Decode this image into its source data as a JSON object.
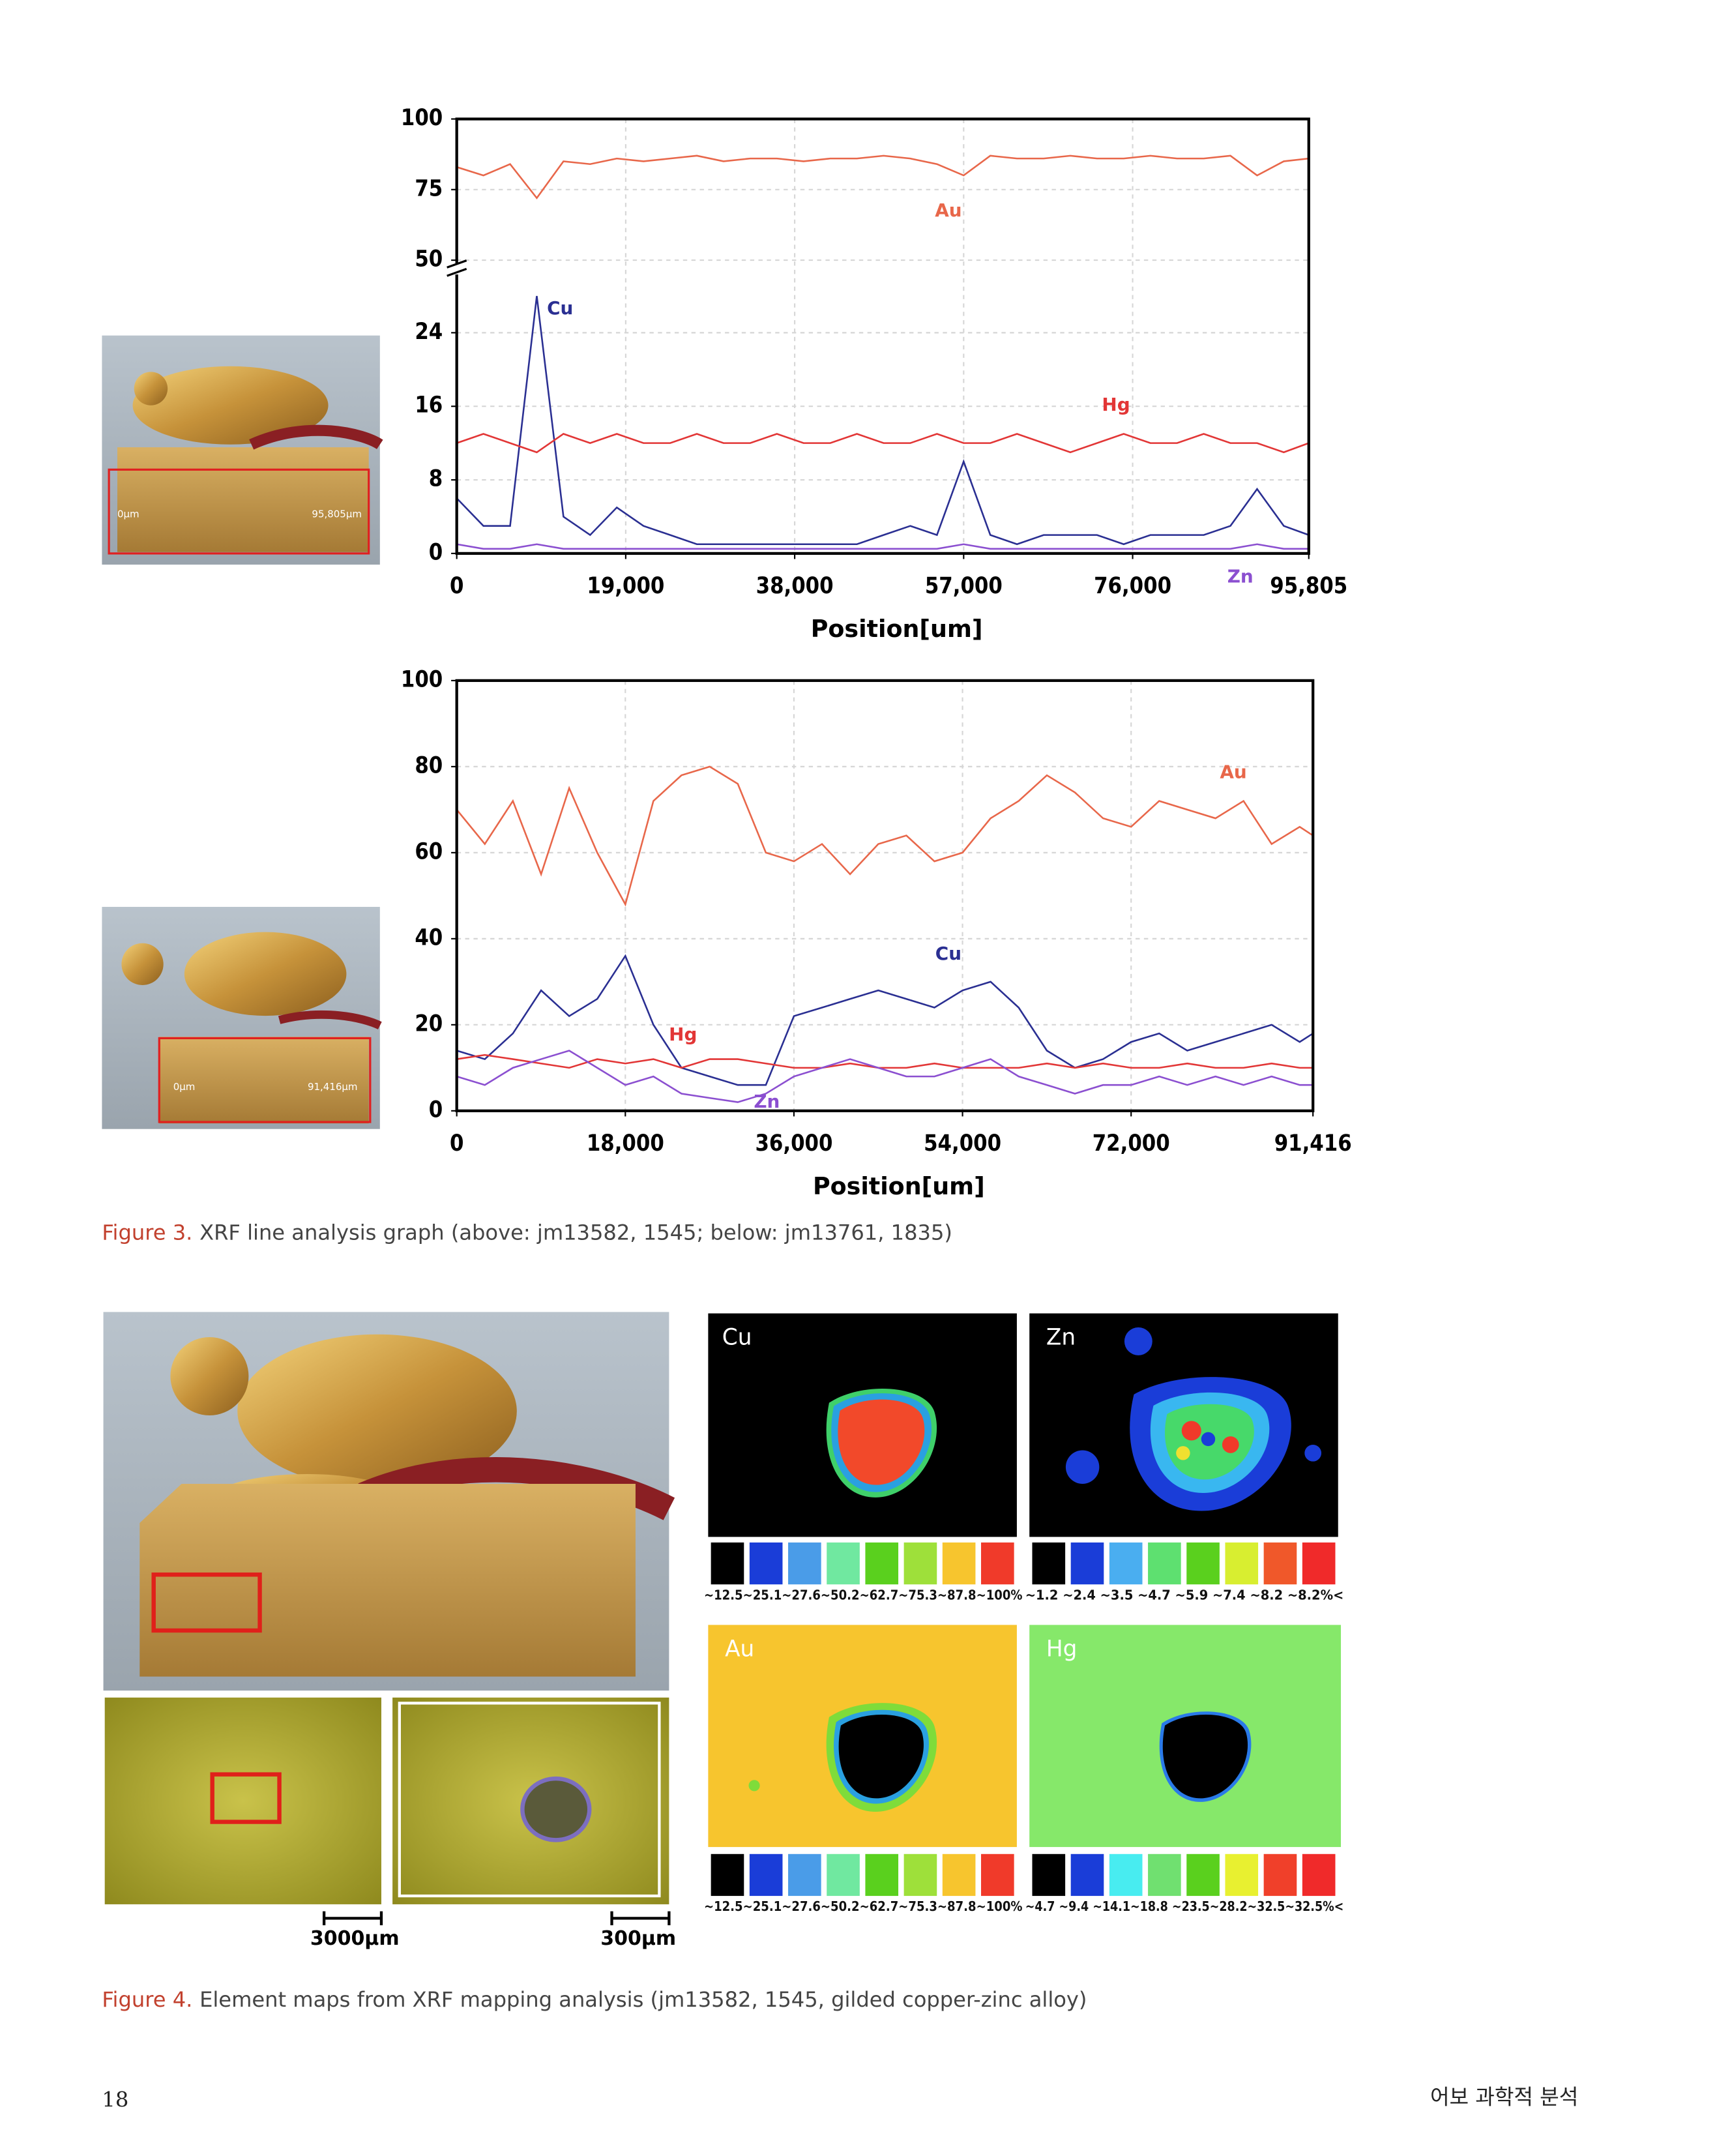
{
  "chart_data": [
    {
      "type": "line",
      "x_label": "Position[um]",
      "x": [
        0,
        3000,
        6000,
        9000,
        12000,
        15000,
        18000,
        21000,
        24000,
        27000,
        30000,
        33000,
        36000,
        39000,
        42000,
        45000,
        48000,
        51000,
        54000,
        57000,
        60000,
        63000,
        66000,
        69000,
        72000,
        75000,
        78000,
        81000,
        84000,
        87000,
        90000,
        93000,
        95805
      ],
      "xlim": [
        0,
        95805
      ],
      "xticks": [
        0,
        {
          "value": 19000,
          "label": "19,000"
        },
        {
          "value": 38000,
          "label": "38,000"
        },
        {
          "value": 57000,
          "label": "57,000"
        },
        {
          "value": 76000,
          "label": "76,000"
        },
        {
          "value": 95805,
          "label": "95,805"
        }
      ],
      "ylim": [
        0,
        100
      ],
      "ybreak": [
        30,
        50
      ],
      "yticks": [
        0,
        8,
        16,
        24,
        50,
        75,
        100
      ],
      "grid": true,
      "series": [
        {
          "name": "Au",
          "color": "#e8674a",
          "values": [
            83,
            80,
            84,
            72,
            85,
            84,
            86,
            85,
            86,
            87,
            85,
            86,
            86,
            85,
            86,
            86,
            87,
            86,
            84,
            80,
            87,
            86,
            86,
            87,
            86,
            86,
            87,
            86,
            86,
            87,
            80,
            85,
            86
          ]
        },
        {
          "name": "Cu",
          "color": "#2a2f92",
          "values": [
            6,
            3,
            3,
            28,
            4,
            2,
            5,
            3,
            2,
            1,
            1,
            1,
            1,
            1,
            1,
            1,
            2,
            3,
            2,
            10,
            2,
            1,
            2,
            2,
            2,
            1,
            2,
            2,
            2,
            3,
            7,
            3,
            2
          ]
        },
        {
          "name": "Hg",
          "color": "#e23636",
          "values": [
            12,
            13,
            12,
            11,
            13,
            12,
            13,
            12,
            12,
            13,
            12,
            12,
            13,
            12,
            12,
            13,
            12,
            12,
            13,
            12,
            12,
            13,
            12,
            11,
            12,
            13,
            12,
            12,
            13,
            12,
            12,
            11,
            12
          ]
        },
        {
          "name": "Zn",
          "color": "#8b4fd0",
          "values": [
            1,
            0.5,
            0.5,
            1,
            0.5,
            0.5,
            0.5,
            0.5,
            0.5,
            0.5,
            0.5,
            0.5,
            0.5,
            0.5,
            0.5,
            0.5,
            0.5,
            0.5,
            0.5,
            1,
            0.5,
            0.5,
            0.5,
            0.5,
            0.5,
            0.5,
            0.5,
            0.5,
            0.5,
            0.5,
            1,
            0.5,
            0.5
          ]
        }
      ]
    },
    {
      "type": "line",
      "x_label": "Position[um]",
      "x": [
        0,
        3000,
        6000,
        9000,
        12000,
        15000,
        18000,
        21000,
        24000,
        27000,
        30000,
        33000,
        36000,
        39000,
        42000,
        45000,
        48000,
        51000,
        54000,
        57000,
        60000,
        63000,
        66000,
        69000,
        72000,
        75000,
        78000,
        81000,
        84000,
        87000,
        90000,
        91416
      ],
      "xlim": [
        0,
        91416
      ],
      "xticks": [
        0,
        {
          "value": 18000,
          "label": "18,000"
        },
        {
          "value": 36000,
          "label": "36,000"
        },
        {
          "value": 54000,
          "label": "54,000"
        },
        {
          "value": 72000,
          "label": "72,000"
        },
        {
          "value": 91416,
          "label": "91,416"
        }
      ],
      "ylim": [
        0,
        100
      ],
      "yticks": [
        0,
        20,
        40,
        60,
        80,
        100
      ],
      "grid": true,
      "series": [
        {
          "name": "Au",
          "color": "#e8674a",
          "values": [
            70,
            62,
            72,
            55,
            75,
            60,
            48,
            72,
            78,
            80,
            76,
            60,
            58,
            62,
            55,
            62,
            64,
            58,
            60,
            68,
            72,
            78,
            74,
            68,
            66,
            72,
            70,
            68,
            72,
            62,
            66,
            64
          ]
        },
        {
          "name": "Cu",
          "color": "#2a2f92",
          "values": [
            14,
            12,
            18,
            28,
            22,
            26,
            36,
            20,
            10,
            8,
            6,
            6,
            22,
            24,
            26,
            28,
            26,
            24,
            28,
            30,
            24,
            14,
            10,
            12,
            16,
            18,
            14,
            16,
            18,
            20,
            16,
            18
          ]
        },
        {
          "name": "Hg",
          "color": "#e23636",
          "values": [
            12,
            13,
            12,
            11,
            10,
            12,
            11,
            12,
            10,
            12,
            12,
            11,
            10,
            10,
            11,
            10,
            10,
            11,
            10,
            10,
            10,
            11,
            10,
            11,
            10,
            10,
            11,
            10,
            10,
            11,
            10,
            10
          ]
        },
        {
          "name": "Zn",
          "color": "#8b4fd0",
          "values": [
            8,
            6,
            10,
            12,
            14,
            10,
            6,
            8,
            4,
            3,
            2,
            4,
            8,
            10,
            12,
            10,
            8,
            8,
            10,
            12,
            8,
            6,
            4,
            6,
            6,
            8,
            6,
            8,
            6,
            8,
            6,
            6
          ]
        }
      ]
    }
  ],
  "figure3": {
    "photos": [
      {
        "start": "0μm",
        "end": "95,805μm"
      },
      {
        "start": "0μm",
        "end": "91,416μm"
      }
    ],
    "caption": {
      "label": "Figure 3.",
      "text": "XRF line analysis graph (above: jm13582, 1545; below: jm13761, 1835)"
    }
  },
  "figure4": {
    "scale_bars": [
      "3000μm",
      "300μm"
    ],
    "maps": [
      {
        "element": "Cu",
        "scale": "~12.5~25.1~27.6~50.2~62.7~75.3~87.8~100%"
      },
      {
        "element": "Zn",
        "scale": "~1.2  ~2.4  ~3.5  ~4.7  ~5.9  ~7.4  ~8.2  ~8.2%<"
      },
      {
        "element": "Au",
        "scale": "~12.5~25.1~27.6~50.2~62.7~75.3~87.8~100%"
      },
      {
        "element": "Hg",
        "scale": "~4.7  ~9.4  ~14.1~18.8  ~23.5~28.2~32.5~32.5%<"
      }
    ],
    "caption": {
      "label": "Figure 4.",
      "text": "Element maps from XRF mapping analysis (jm13582, 1545, gilded copper-zinc alloy)"
    }
  },
  "footer": {
    "page": "18",
    "title": "어보 과학적 분석"
  }
}
